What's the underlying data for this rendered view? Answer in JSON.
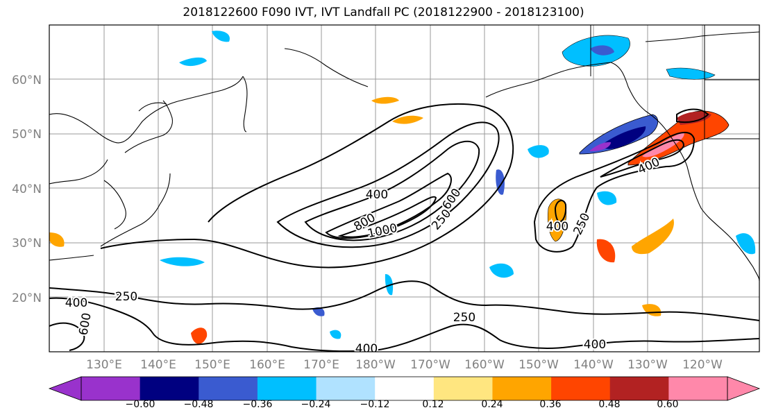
{
  "title": "2018122600 F090 IVT, IVT Landfall PC (2018122900 - 2018123100)",
  "map": {
    "lat_labels": [
      "60°N",
      "50°N",
      "40°N",
      "30°N",
      "20°N"
    ],
    "lon_labels": [
      "130°E",
      "140°E",
      "150°E",
      "160°E",
      "170°E",
      "180°W",
      "170°W",
      "160°W",
      "150°W",
      "140°W",
      "130°W",
      "120°W"
    ],
    "contour_labels": [
      "400",
      "600",
      "800",
      "1000",
      "250",
      "400",
      "250",
      "250",
      "400",
      "600",
      "250",
      "400",
      "400"
    ],
    "label_color": "#808080"
  },
  "colorbar": {
    "colors": [
      "#9932cc",
      "#000080",
      "#3a5bd0",
      "#00bfff",
      "#b0e2ff",
      "#ffffff",
      "#ffe680",
      "#ffa500",
      "#ff4500",
      "#b22222",
      "#ff88aa"
    ],
    "tick_labels": [
      "−0.60",
      "−0.48",
      "−0.36",
      "−0.24",
      "−0.12",
      "0.12",
      "0.24",
      "0.36",
      "0.48",
      "0.60"
    ]
  }
}
